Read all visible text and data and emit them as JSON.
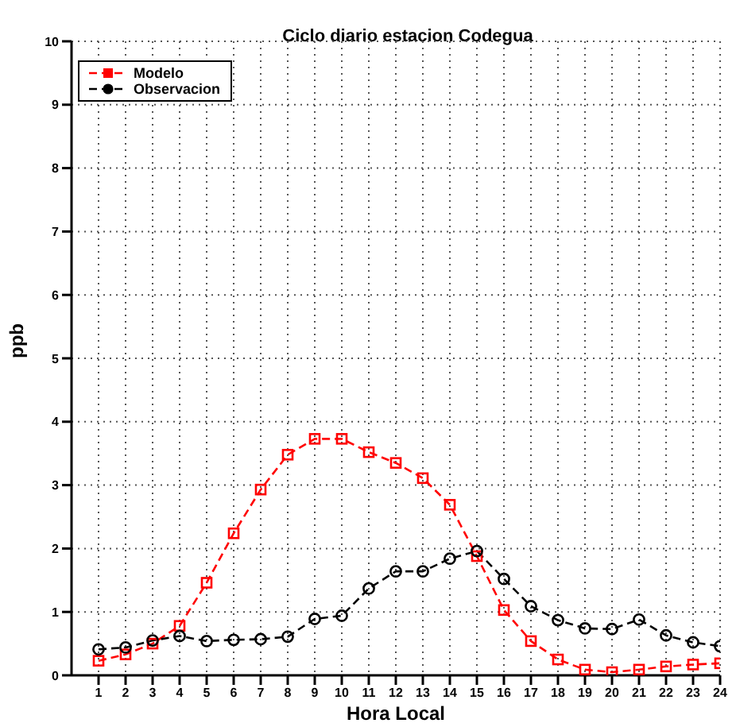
{
  "chart_data": {
    "type": "line",
    "title": "Ciclo diario estacion Codegua",
    "xlabel": "Hora Local",
    "ylabel": "ppb",
    "x": [
      1,
      2,
      3,
      4,
      5,
      6,
      7,
      8,
      9,
      10,
      11,
      12,
      13,
      14,
      15,
      16,
      17,
      18,
      19,
      20,
      21,
      22,
      23,
      24
    ],
    "xlim": [
      0,
      24
    ],
    "xticks": [
      1,
      2,
      3,
      4,
      5,
      6,
      7,
      8,
      9,
      10,
      11,
      12,
      13,
      14,
      15,
      16,
      17,
      18,
      19,
      20,
      21,
      22,
      23,
      24
    ],
    "ylim": [
      0,
      10
    ],
    "yticks": [
      0,
      1,
      2,
      3,
      4,
      5,
      6,
      7,
      8,
      9,
      10
    ],
    "grid": true,
    "legend": "top left",
    "line_style": "dashed",
    "series": [
      {
        "name": "Modelo",
        "color": "#ff0000",
        "marker": "square",
        "values": [
          0.23,
          0.33,
          0.5,
          0.78,
          1.46,
          2.24,
          2.93,
          3.48,
          3.73,
          3.73,
          3.52,
          3.35,
          3.11,
          2.69,
          1.88,
          1.03,
          0.54,
          0.25,
          0.09,
          0.05,
          0.09,
          0.14,
          0.17,
          0.19
        ]
      },
      {
        "name": "Observacion",
        "color": "#000000",
        "marker": "circle",
        "values": [
          0.41,
          0.44,
          0.55,
          0.62,
          0.54,
          0.56,
          0.57,
          0.61,
          0.89,
          0.94,
          1.37,
          1.64,
          1.64,
          1.84,
          1.96,
          1.52,
          1.09,
          0.87,
          0.74,
          0.73,
          0.88,
          0.63,
          0.52,
          0.46
        ]
      }
    ]
  }
}
